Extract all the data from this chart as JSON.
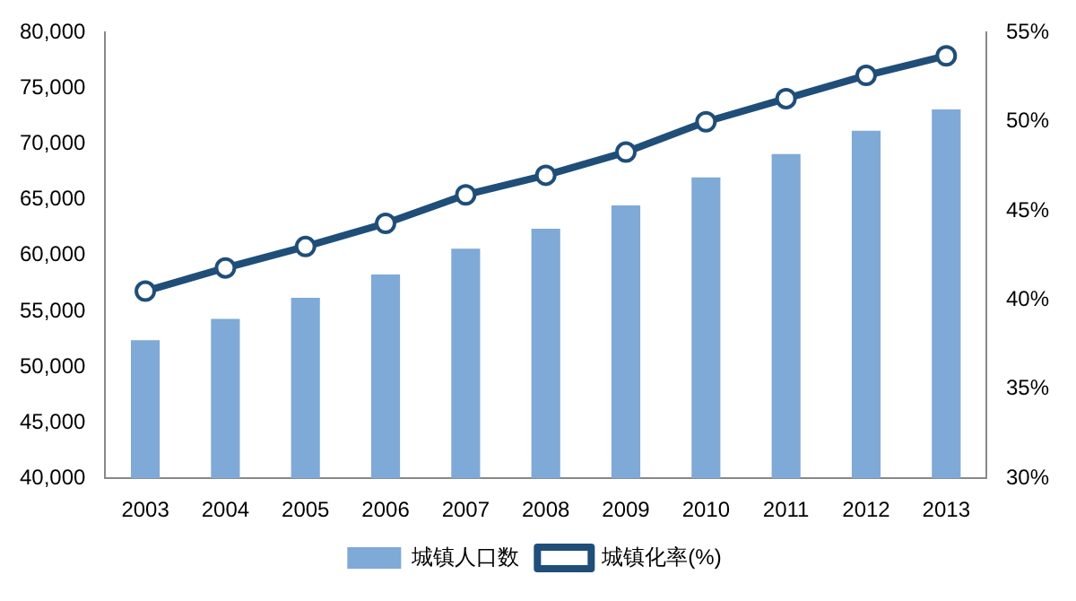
{
  "chart_data": {
    "type": "bar",
    "categories": [
      "2003",
      "2004",
      "2005",
      "2006",
      "2007",
      "2008",
      "2009",
      "2010",
      "2011",
      "2012",
      "2013"
    ],
    "series": [
      {
        "name": "城镇人口数",
        "color": "#7fa9d6",
        "values": [
          52400,
          54300,
          56200,
          58300,
          60600,
          62400,
          64500,
          67000,
          69100,
          71200,
          73100
        ]
      },
      {
        "name": "城镇化率(%)",
        "type": "line",
        "axis": "y2",
        "color": "#1f4e79",
        "marker": "circle",
        "values": [
          40.5,
          41.8,
          43.0,
          44.3,
          45.9,
          47.0,
          48.3,
          50.0,
          51.3,
          52.6,
          53.7
        ]
      }
    ],
    "ylim": [
      40000,
      80000
    ],
    "yticks": [
      {
        "value": 40000,
        "label": "40,000"
      },
      {
        "value": 45000,
        "label": "45,000"
      },
      {
        "value": 50000,
        "label": "50,000"
      },
      {
        "value": 55000,
        "label": "55,000"
      },
      {
        "value": 60000,
        "label": "60,000"
      },
      {
        "value": 65000,
        "label": "65,000"
      },
      {
        "value": 70000,
        "label": "70,000"
      },
      {
        "value": 75000,
        "label": "75,000"
      },
      {
        "value": 80000,
        "label": "80,000"
      }
    ],
    "y2lim": [
      30,
      55
    ],
    "y2ticks": [
      {
        "value": 30,
        "label": "30%"
      },
      {
        "value": 35,
        "label": "35%"
      },
      {
        "value": 40,
        "label": "40%"
      },
      {
        "value": 45,
        "label": "45%"
      },
      {
        "value": 50,
        "label": "50%"
      },
      {
        "value": 55,
        "label": "55%"
      }
    ],
    "grid": false,
    "legend": "bottom"
  }
}
